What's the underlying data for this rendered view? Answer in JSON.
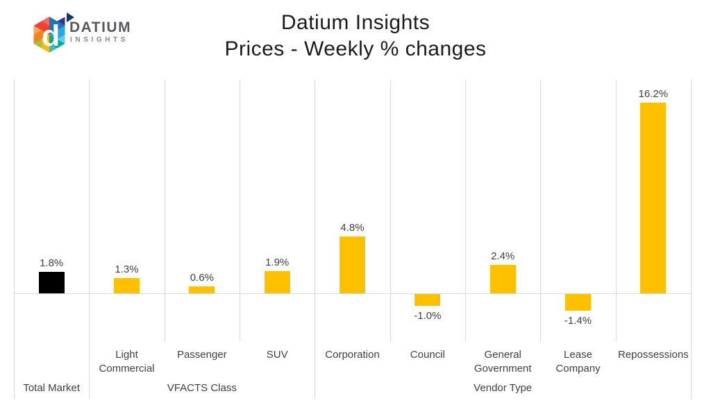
{
  "logo": {
    "brand": "DATIUM",
    "subtitle": "INSIGHTS"
  },
  "title": {
    "line1": "Datium Insights",
    "line2": "Prices - Weekly % changes"
  },
  "chart_data": {
    "type": "bar",
    "title": "Datium Insights Prices - Weekly % changes",
    "categories": [
      "Total Market",
      "Light Commercial",
      "Passenger",
      "SUV",
      "Corporation",
      "Council",
      "General Government",
      "Lease Company",
      "Repossessions"
    ],
    "values": [
      1.8,
      1.3,
      0.6,
      1.9,
      4.8,
      -1.0,
      2.4,
      -1.4,
      16.2
    ],
    "data_labels": [
      "1.8%",
      "1.3%",
      "0.6%",
      "1.9%",
      "4.8%",
      "-1.0%",
      "2.4%",
      "-1.4%",
      "16.2%"
    ],
    "bar_colors": [
      "#000000",
      "#FFC000",
      "#FFC000",
      "#FFC000",
      "#FFC000",
      "#FFC000",
      "#FFC000",
      "#FFC000",
      "#FFC000"
    ],
    "category_groups": [
      null,
      "VFACTS Class",
      "VFACTS Class",
      "VFACTS Class",
      "Vendor Type",
      "Vendor Type",
      "Vendor Type",
      "Vendor Type",
      "Vendor Type"
    ],
    "group_axis_labels": [
      "Total Market",
      "VFACTS Class",
      "Vendor Type"
    ],
    "ylim": [
      -4,
      18.1
    ],
    "xlabel": "",
    "ylabel": "",
    "legend": "none",
    "grid": "vertical-category-separators-only",
    "default_bar_color": "#FFC000",
    "highlight_bar_color": "#000000",
    "gridline_color": "#D9D9D9",
    "label_color": "#3F3F3F"
  }
}
